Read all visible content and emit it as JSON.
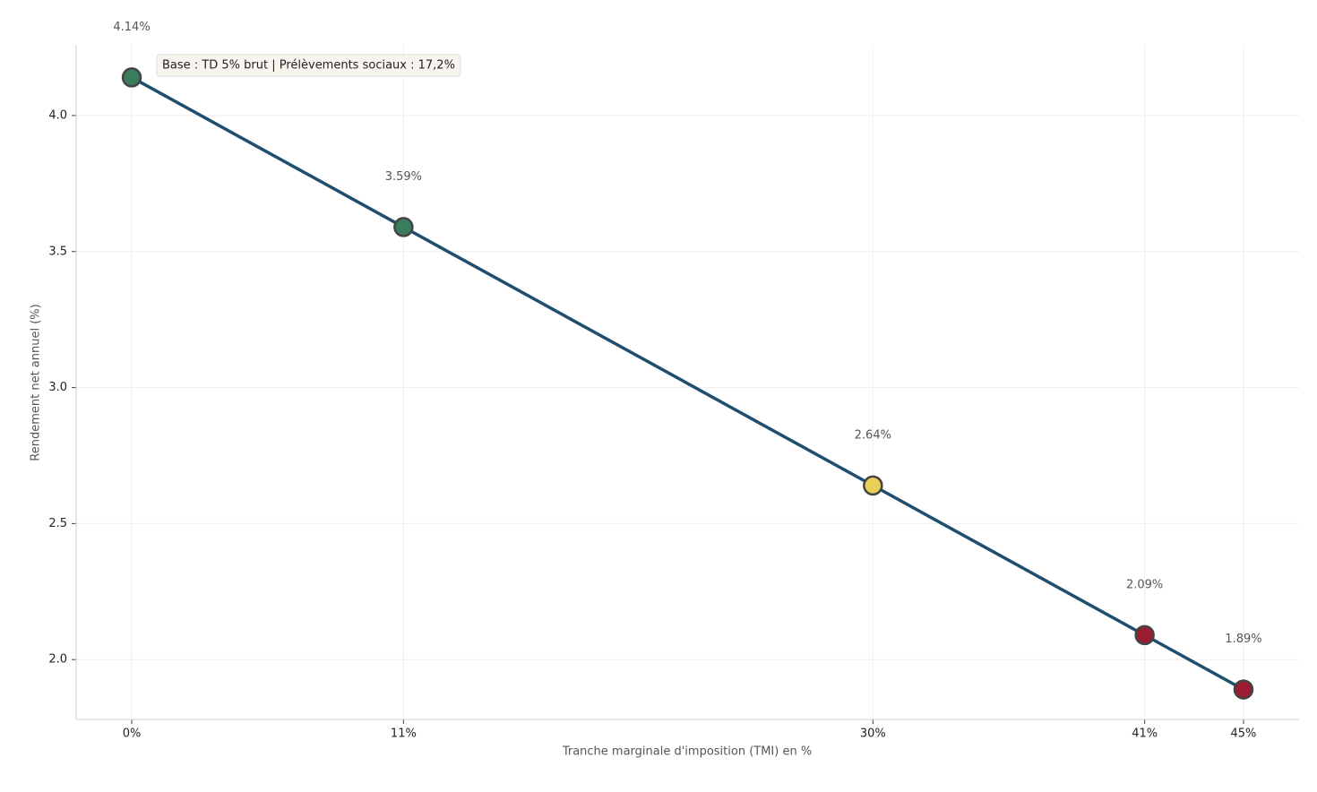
{
  "chart_data": {
    "type": "line",
    "x_label": "Tranche marginale d'imposition (TMI) en %",
    "y_label": "Rendement net annuel (%)",
    "annotation": "Base : TD 5% brut | Prélèvements sociaux : 17,2%",
    "x": [
      0,
      11,
      30,
      41,
      45
    ],
    "values": [
      4.14,
      3.59,
      2.64,
      2.09,
      1.89
    ],
    "value_labels": [
      "4.14%",
      "3.59%",
      "2.64%",
      "2.09%",
      "1.89%"
    ],
    "color": "#1f4e6e",
    "point_colors": [
      "#3a7d5c",
      "#3a7d5c",
      "#e8d05a",
      "#9b1b30",
      "#9b1b30"
    ],
    "xlim": [
      -2.25,
      47.25
    ],
    "ylim": [
      1.78,
      4.26
    ],
    "xticks": [
      {
        "value": 0,
        "label": "0%"
      },
      {
        "value": 11,
        "label": "11%"
      },
      {
        "value": 30,
        "label": "30%"
      },
      {
        "value": 41,
        "label": "41%"
      },
      {
        "value": 45,
        "label": "45%"
      }
    ],
    "yticks": [
      {
        "value": 2,
        "label": "2.0"
      },
      {
        "value": 2.5,
        "label": "2.5"
      },
      {
        "value": 3,
        "label": "3.0"
      },
      {
        "value": 3.5,
        "label": "3.5"
      },
      {
        "value": 4,
        "label": "4.0"
      }
    ],
    "grid": true
  }
}
